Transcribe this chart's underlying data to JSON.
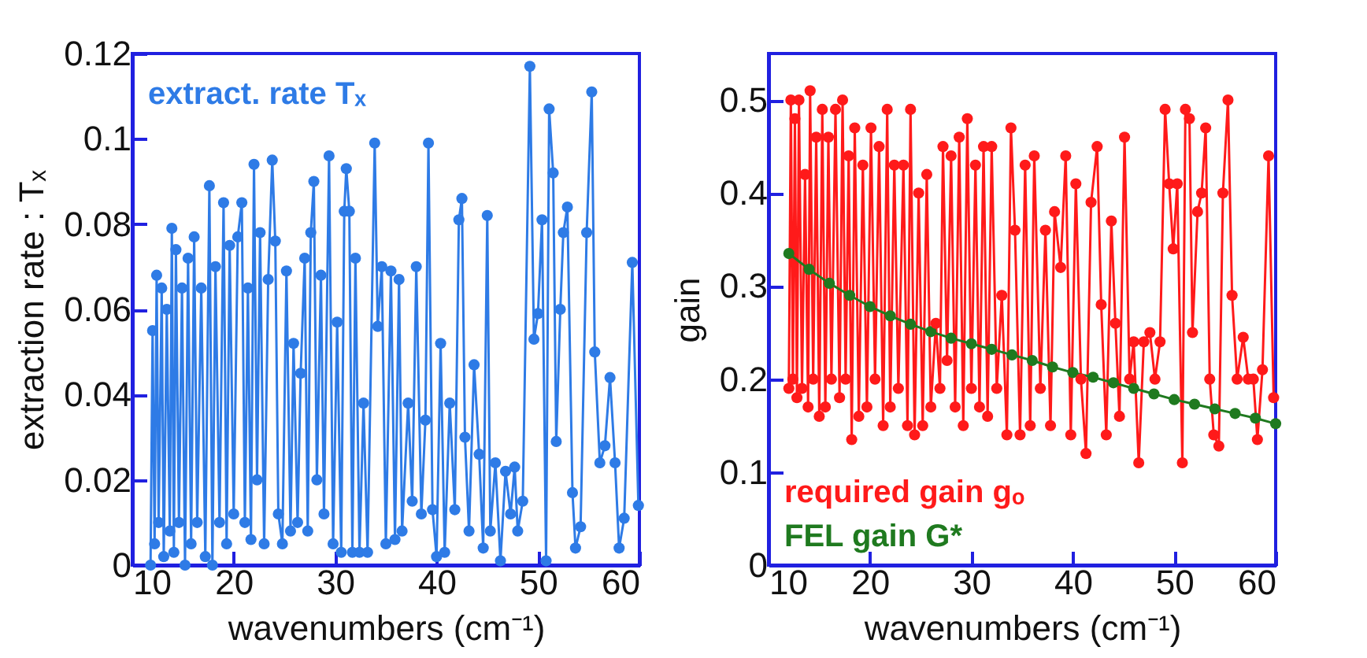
{
  "chart_data": [
    {
      "type": "line",
      "xlabel": "wavenumbers (cm⁻¹)",
      "ylabel": "extraction rate : Tₓ",
      "xlim": [
        10,
        60
      ],
      "xticks": [
        10,
        20,
        30,
        40,
        50,
        60
      ],
      "ylim": [
        0,
        0.12
      ],
      "yticks": [
        0,
        0.02,
        0.04,
        0.06,
        0.08,
        0.1,
        0.12
      ],
      "marker": "circle",
      "line_style": "solid",
      "grid": false,
      "legend": "top left",
      "series": [
        {
          "name": "extract. rate Tₓ",
          "color": "#2e7be6",
          "x": [
            11.8,
            12.0,
            12.2,
            12.4,
            12.6,
            12.9,
            13.1,
            13.4,
            13.7,
            13.9,
            14.1,
            14.3,
            14.6,
            14.9,
            15.2,
            15.5,
            15.8,
            16.1,
            16.4,
            16.8,
            17.2,
            17.6,
            17.9,
            18.2,
            18.6,
            19.0,
            19.3,
            19.6,
            20.0,
            20.4,
            20.8,
            21.1,
            21.4,
            21.7,
            22.0,
            22.3,
            22.6,
            23.0,
            23.4,
            23.8,
            24.1,
            24.4,
            24.8,
            25.2,
            25.6,
            25.9,
            26.3,
            26.6,
            27.0,
            27.3,
            27.6,
            27.9,
            28.2,
            28.6,
            28.9,
            29.4,
            29.8,
            30.2,
            30.6,
            30.9,
            31.1,
            31.4,
            31.7,
            32.0,
            32.4,
            32.8,
            33.2,
            33.9,
            34.2,
            34.6,
            35.0,
            35.5,
            35.9,
            36.3,
            36.6,
            37.2,
            37.6,
            38.0,
            38.5,
            38.9,
            39.2,
            39.6,
            40.0,
            40.4,
            40.8,
            41.3,
            41.8,
            42.2,
            42.5,
            42.8,
            43.2,
            43.7,
            44.2,
            44.6,
            45.0,
            45.3,
            45.8,
            46.3,
            46.8,
            47.3,
            47.7,
            48.0,
            48.5,
            49.2,
            49.6,
            50.0,
            50.4,
            50.8,
            51.1,
            51.5,
            51.8,
            52.2,
            52.5,
            52.9,
            53.4,
            53.7,
            54.2,
            54.8,
            55.3,
            55.6,
            56.1,
            56.6,
            57.1,
            57.6,
            58.0,
            58.5,
            59.3,
            59.9
          ],
          "values": [
            0.0,
            0.055,
            0.005,
            0.068,
            0.01,
            0.065,
            0.002,
            0.06,
            0.008,
            0.079,
            0.003,
            0.074,
            0.01,
            0.065,
            0.0,
            0.072,
            0.005,
            0.077,
            0.01,
            0.065,
            0.002,
            0.089,
            0.0,
            0.07,
            0.01,
            0.085,
            0.005,
            0.075,
            0.012,
            0.077,
            0.085,
            0.01,
            0.065,
            0.006,
            0.094,
            0.02,
            0.078,
            0.005,
            0.067,
            0.095,
            0.076,
            0.012,
            0.005,
            0.069,
            0.008,
            0.052,
            0.01,
            0.045,
            0.072,
            0.008,
            0.078,
            0.09,
            0.02,
            0.068,
            0.012,
            0.096,
            0.005,
            0.057,
            0.003,
            0.083,
            0.093,
            0.083,
            0.003,
            0.072,
            0.003,
            0.038,
            0.003,
            0.099,
            0.056,
            0.07,
            0.005,
            0.069,
            0.006,
            0.067,
            0.008,
            0.038,
            0.015,
            0.07,
            0.012,
            0.034,
            0.099,
            0.013,
            0.002,
            0.052,
            0.003,
            0.038,
            0.013,
            0.081,
            0.086,
            0.03,
            0.008,
            0.047,
            0.026,
            0.004,
            0.082,
            0.008,
            0.024,
            0.001,
            0.022,
            0.012,
            0.023,
            0.008,
            0.015,
            0.117,
            0.053,
            0.059,
            0.081,
            0.001,
            0.107,
            0.092,
            0.029,
            0.06,
            0.078,
            0.084,
            0.017,
            0.004,
            0.009,
            0.078,
            0.111,
            0.05,
            0.024,
            0.028,
            0.044,
            0.024,
            0.004,
            0.011,
            0.071,
            0.014
          ]
        }
      ]
    },
    {
      "type": "line",
      "xlabel": "wavenumbers (cm⁻¹)",
      "ylabel": "gain",
      "xlim": [
        10,
        60
      ],
      "xticks": [
        10,
        20,
        30,
        40,
        50,
        60
      ],
      "ylim": [
        0,
        0.55
      ],
      "yticks": [
        0,
        0.1,
        0.2,
        0.3,
        0.4,
        0.5
      ],
      "marker": "circle",
      "line_style": "solid",
      "grid": false,
      "legend": "bottom left",
      "series": [
        {
          "name": "required gain gₒ",
          "color": "#ff1a1a",
          "x": [
            12.0,
            12.2,
            12.4,
            12.6,
            12.8,
            13.0,
            13.3,
            13.6,
            13.9,
            14.1,
            14.4,
            14.7,
            15.0,
            15.3,
            15.6,
            15.9,
            16.2,
            16.6,
            17.0,
            17.3,
            17.6,
            17.9,
            18.2,
            18.5,
            18.9,
            19.3,
            19.7,
            20.1,
            20.5,
            20.9,
            21.3,
            21.7,
            22.0,
            22.4,
            22.8,
            23.3,
            23.7,
            24.0,
            24.4,
            24.8,
            25.2,
            25.6,
            26.0,
            26.5,
            26.9,
            27.2,
            27.6,
            28.0,
            28.4,
            28.8,
            29.2,
            29.6,
            30.0,
            30.4,
            30.8,
            31.2,
            31.6,
            32.0,
            32.5,
            33.0,
            33.5,
            33.9,
            34.3,
            34.8,
            35.3,
            35.8,
            36.2,
            36.8,
            37.3,
            37.8,
            38.2,
            38.8,
            39.3,
            39.8,
            40.3,
            40.8,
            41.3,
            41.8,
            42.4,
            42.8,
            43.3,
            43.8,
            44.2,
            44.6,
            45.1,
            45.6,
            46.0,
            46.5,
            47.0,
            47.6,
            48.1,
            48.6,
            49.1,
            49.5,
            49.9,
            50.3,
            50.8,
            51.1,
            51.5,
            51.8,
            52.3,
            52.7,
            53.1,
            53.5,
            53.9,
            54.4,
            54.8,
            55.3,
            55.7,
            56.2,
            56.8,
            57.3,
            57.8,
            58.2,
            58.7,
            59.3,
            59.8
          ],
          "values": [
            0.19,
            0.5,
            0.2,
            0.48,
            0.18,
            0.5,
            0.19,
            0.42,
            0.17,
            0.51,
            0.2,
            0.46,
            0.16,
            0.49,
            0.17,
            0.46,
            0.2,
            0.49,
            0.18,
            0.5,
            0.2,
            0.44,
            0.135,
            0.47,
            0.16,
            0.43,
            0.17,
            0.47,
            0.2,
            0.45,
            0.15,
            0.49,
            0.17,
            0.43,
            0.19,
            0.43,
            0.15,
            0.49,
            0.14,
            0.4,
            0.15,
            0.42,
            0.17,
            0.26,
            0.19,
            0.45,
            0.22,
            0.44,
            0.17,
            0.46,
            0.15,
            0.48,
            0.19,
            0.43,
            0.17,
            0.45,
            0.16,
            0.45,
            0.19,
            0.29,
            0.14,
            0.47,
            0.36,
            0.14,
            0.43,
            0.15,
            0.44,
            0.19,
            0.36,
            0.15,
            0.38,
            0.32,
            0.44,
            0.14,
            0.41,
            0.2,
            0.12,
            0.39,
            0.45,
            0.28,
            0.14,
            0.37,
            0.26,
            0.16,
            0.46,
            0.2,
            0.24,
            0.11,
            0.24,
            0.25,
            0.2,
            0.24,
            0.49,
            0.41,
            0.34,
            0.41,
            0.11,
            0.49,
            0.48,
            0.25,
            0.38,
            0.4,
            0.47,
            0.2,
            0.14,
            0.128,
            0.4,
            0.5,
            0.29,
            0.2,
            0.245,
            0.2,
            0.2,
            0.135,
            0.21,
            0.44,
            0.18
          ]
        },
        {
          "name": "FEL gain G*",
          "color": "#1f7a1f",
          "x": [
            12,
            14,
            16,
            18,
            20,
            22,
            24,
            26,
            28,
            30,
            32,
            34,
            36,
            38,
            40,
            42,
            44,
            46,
            48,
            50,
            52,
            54,
            56,
            58,
            60
          ],
          "values": [
            0.335,
            0.318,
            0.303,
            0.29,
            0.278,
            0.268,
            0.259,
            0.251,
            0.244,
            0.238,
            0.232,
            0.226,
            0.22,
            0.213,
            0.207,
            0.202,
            0.196,
            0.19,
            0.184,
            0.178,
            0.173,
            0.168,
            0.163,
            0.158,
            0.152
          ]
        }
      ]
    }
  ]
}
